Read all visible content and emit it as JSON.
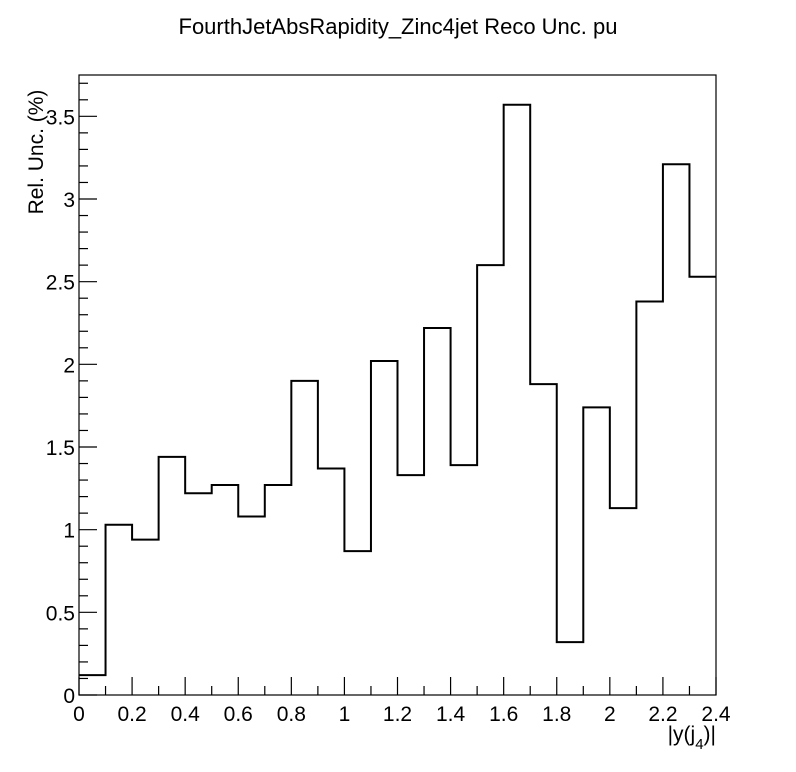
{
  "chart_data": {
    "type": "bar",
    "style": "step-histogram",
    "title": "FourthJetAbsRapidity_Zinc4jet Reco Unc. pu",
    "xlabel_text": "|y(j",
    "xlabel_sub": "4",
    "xlabel_close": ")|",
    "ylabel": "Rel. Unc. (%)",
    "xlim": [
      0,
      2.4
    ],
    "ylim": [
      0,
      3.75
    ],
    "bin_edges": [
      0,
      0.1,
      0.2,
      0.3,
      0.4,
      0.5,
      0.6,
      0.7,
      0.8,
      0.9,
      1.0,
      1.1,
      1.2,
      1.3,
      1.4,
      1.5,
      1.6,
      1.7,
      1.8,
      1.9,
      2.0,
      2.1,
      2.2,
      2.3,
      2.4
    ],
    "values": [
      0.12,
      1.03,
      0.94,
      1.44,
      1.22,
      1.27,
      1.08,
      1.27,
      1.9,
      1.37,
      0.87,
      2.02,
      1.33,
      2.22,
      1.39,
      2.6,
      3.57,
      1.88,
      0.32,
      1.74,
      1.13,
      2.38,
      3.21,
      2.53
    ],
    "x_ticks": [
      {
        "v": 0,
        "label": "0"
      },
      {
        "v": 0.2,
        "label": "0.2"
      },
      {
        "v": 0.4,
        "label": "0.4"
      },
      {
        "v": 0.6,
        "label": "0.6"
      },
      {
        "v": 0.8,
        "label": "0.8"
      },
      {
        "v": 1.0,
        "label": "1"
      },
      {
        "v": 1.2,
        "label": "1.2"
      },
      {
        "v": 1.4,
        "label": "1.4"
      },
      {
        "v": 1.6,
        "label": "1.6"
      },
      {
        "v": 1.8,
        "label": "1.8"
      },
      {
        "v": 2.0,
        "label": "2"
      },
      {
        "v": 2.2,
        "label": "2.2"
      },
      {
        "v": 2.4,
        "label": "2.4"
      }
    ],
    "y_ticks": [
      {
        "v": 0,
        "label": "0"
      },
      {
        "v": 0.5,
        "label": "0.5"
      },
      {
        "v": 1,
        "label": "1"
      },
      {
        "v": 1.5,
        "label": "1.5"
      },
      {
        "v": 2,
        "label": "2"
      },
      {
        "v": 2.5,
        "label": "2.5"
      },
      {
        "v": 3,
        "label": "3"
      },
      {
        "v": 3.5,
        "label": "3.5"
      }
    ],
    "grid": false,
    "legend": "none",
    "line_color": "#000000"
  }
}
